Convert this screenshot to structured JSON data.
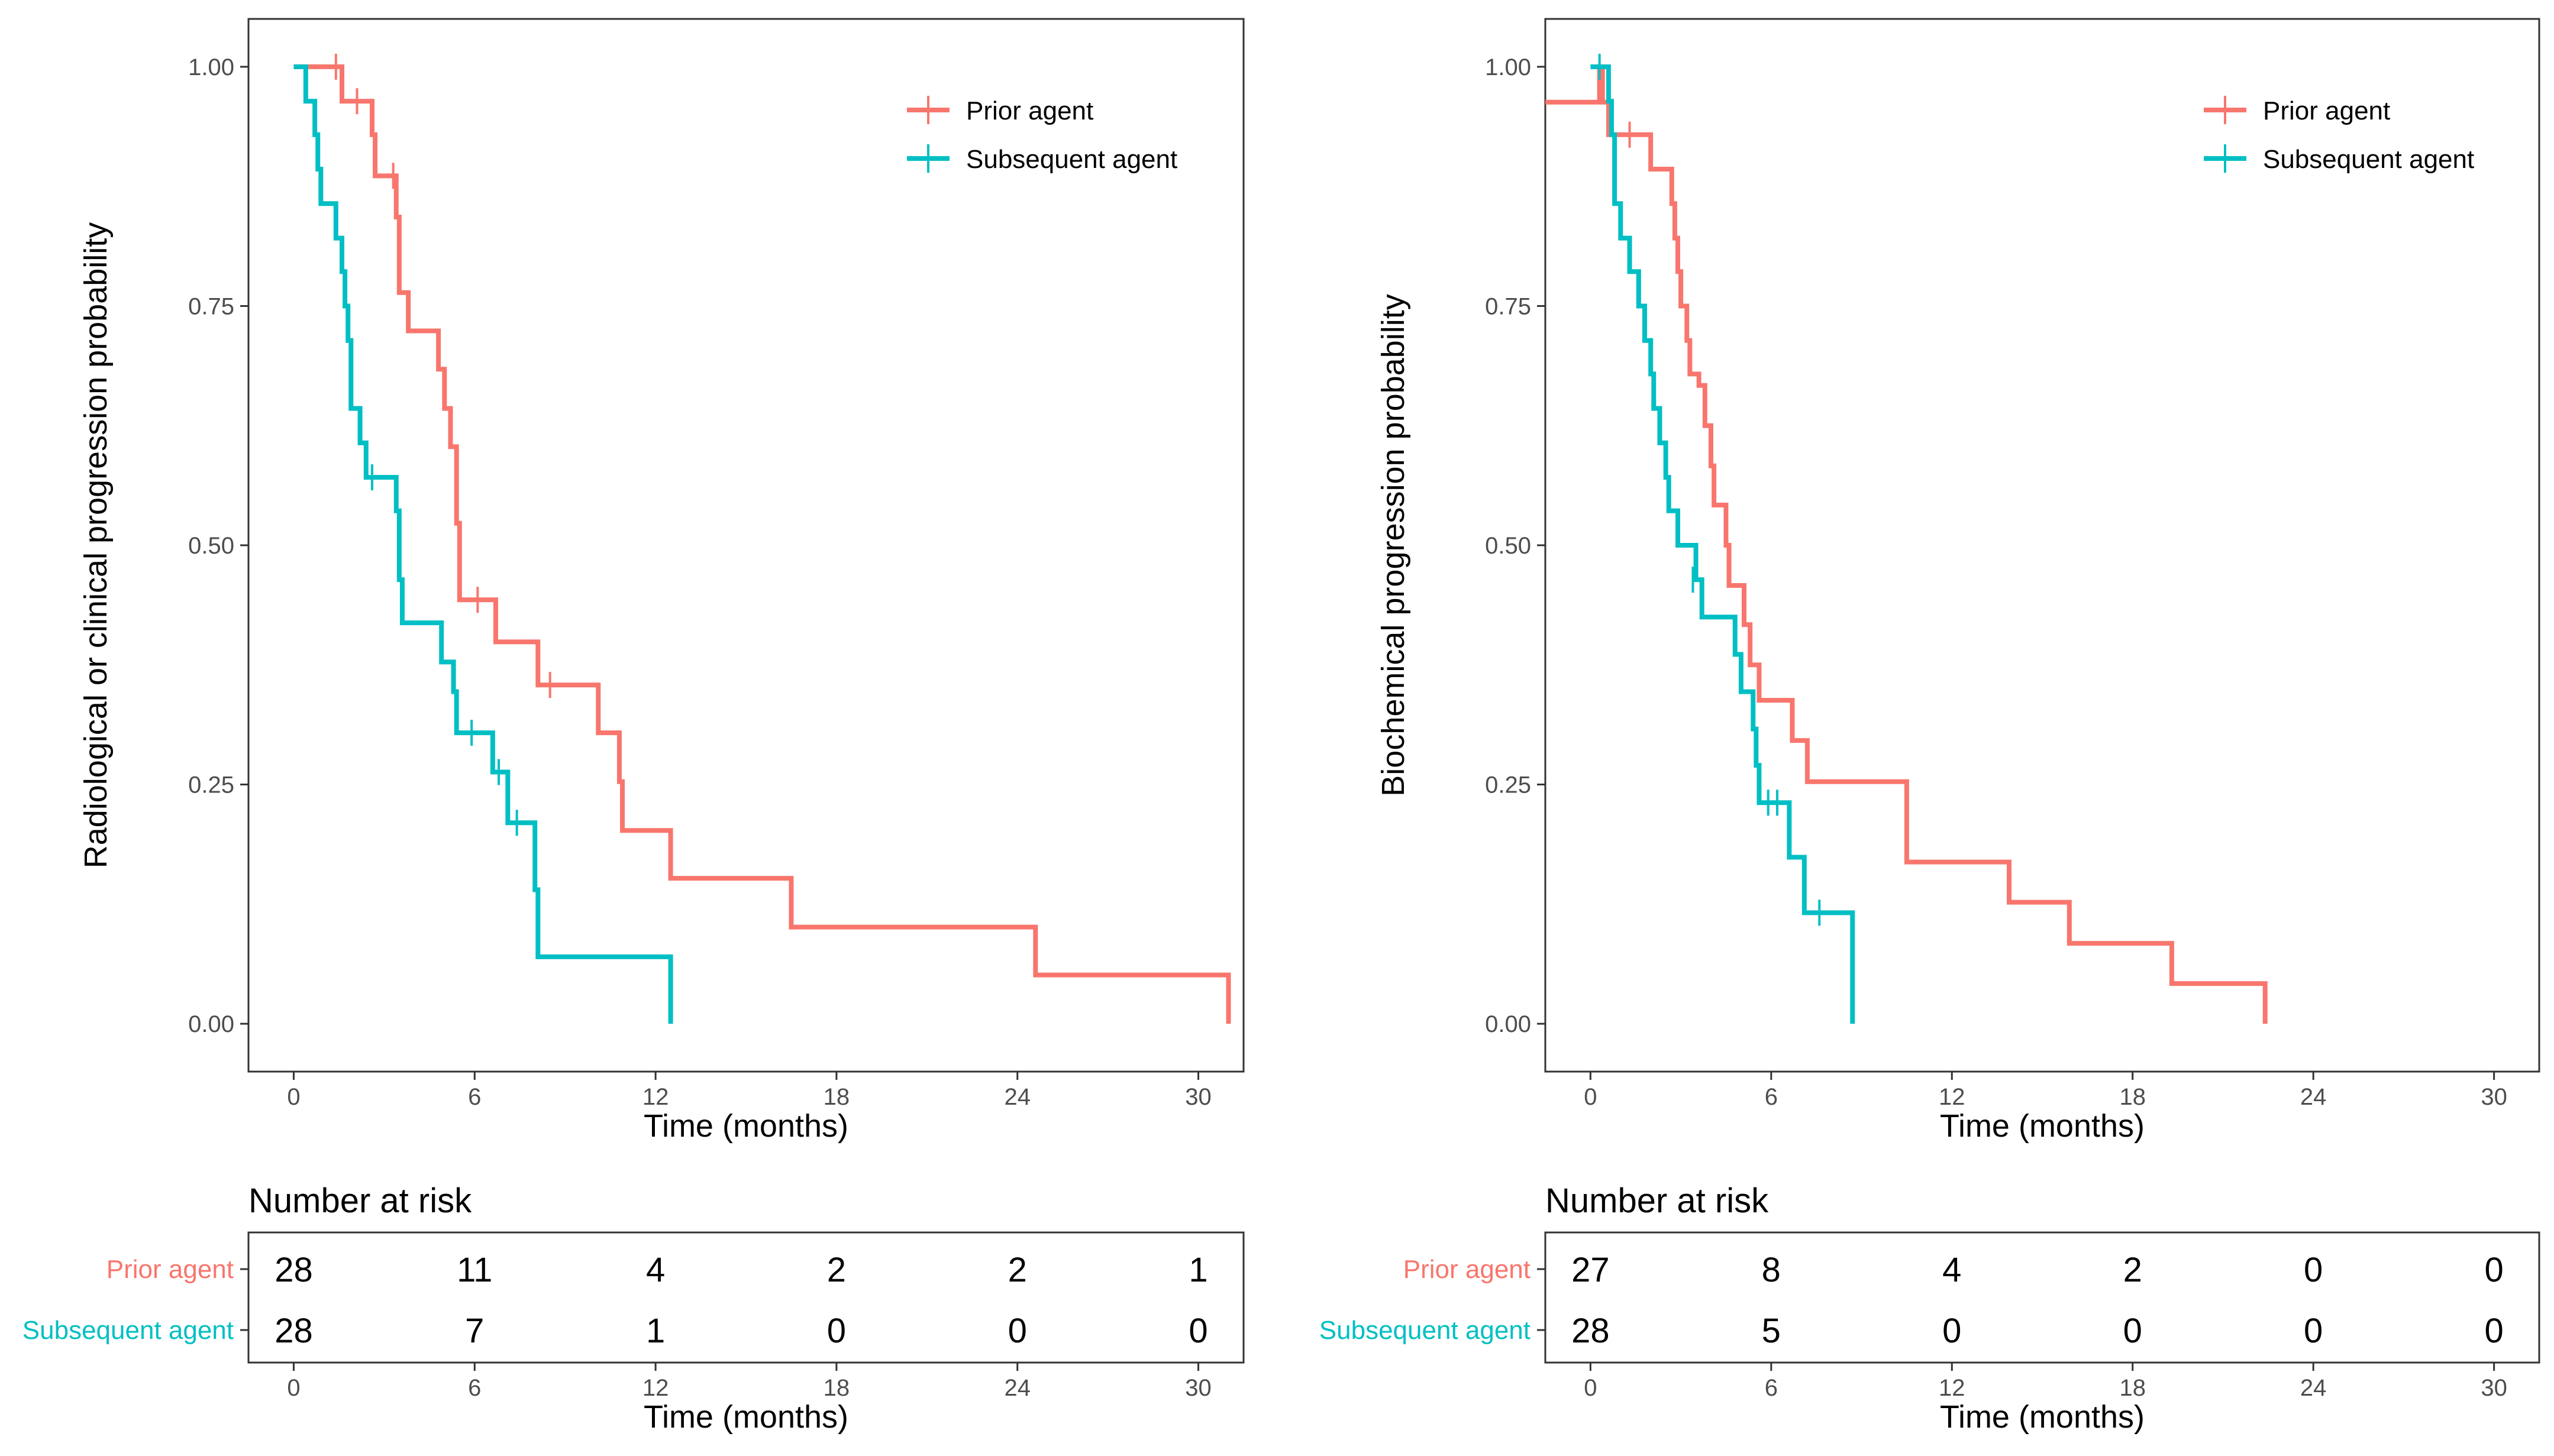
{
  "colors": {
    "prior": "#F8766D",
    "subsequent": "#00BFC4",
    "axis": "#333333",
    "tick_text": "#4d4d4d"
  },
  "chart_data": [
    {
      "type": "line",
      "subtype": "kaplan-meier step curve",
      "ylabel": "Radiological or clinical progression probability",
      "xlabel": "Time (months)",
      "xticks": [
        0,
        6,
        12,
        18,
        24,
        30
      ],
      "yticks": [
        "0.00",
        "0.25",
        "0.50",
        "0.75",
        "1.00"
      ],
      "xlim": [
        -1.5,
        31.5
      ],
      "ylim": [
        -0.05,
        1.05
      ],
      "legend": {
        "position": "top-right",
        "entries": [
          "Prior agent",
          "Subsequent agent"
        ]
      },
      "series": [
        {
          "name": "Prior agent",
          "color": "#F8766D",
          "steps": [
            [
              0,
              1.0
            ],
            [
              1.6,
              0.964
            ],
            [
              2.6,
              0.929
            ],
            [
              2.7,
              0.886
            ],
            [
              3.4,
              0.843
            ],
            [
              3.5,
              0.764
            ],
            [
              3.8,
              0.724
            ],
            [
              4.8,
              0.684
            ],
            [
              5.0,
              0.643
            ],
            [
              5.2,
              0.603
            ],
            [
              5.4,
              0.523
            ],
            [
              5.5,
              0.443
            ],
            [
              6.7,
              0.399
            ],
            [
              8.1,
              0.354
            ],
            [
              10.1,
              0.304
            ],
            [
              10.8,
              0.253
            ],
            [
              10.9,
              0.202
            ],
            [
              12.5,
              0.152
            ],
            [
              16.5,
              0.101
            ],
            [
              24.6,
              0.051
            ],
            [
              31.0,
              0.0
            ]
          ],
          "end": 31.0,
          "censors": [
            [
              1.4,
              1.0
            ],
            [
              2.1,
              0.964
            ],
            [
              3.3,
              0.886
            ],
            [
              6.1,
              0.443
            ],
            [
              8.5,
              0.354
            ]
          ]
        },
        {
          "name": "Subsequent agent",
          "color": "#00BFC4",
          "steps": [
            [
              0,
              1.0
            ],
            [
              0.4,
              0.964
            ],
            [
              0.7,
              0.929
            ],
            [
              0.8,
              0.893
            ],
            [
              0.9,
              0.857
            ],
            [
              1.4,
              0.821
            ],
            [
              1.6,
              0.786
            ],
            [
              1.7,
              0.75
            ],
            [
              1.8,
              0.714
            ],
            [
              1.9,
              0.643
            ],
            [
              2.2,
              0.607
            ],
            [
              2.4,
              0.571
            ],
            [
              3.4,
              0.536
            ],
            [
              3.5,
              0.464
            ],
            [
              3.6,
              0.419
            ],
            [
              4.9,
              0.378
            ],
            [
              5.3,
              0.347
            ],
            [
              5.4,
              0.304
            ],
            [
              6.6,
              0.263
            ],
            [
              7.1,
              0.21
            ],
            [
              8.0,
              0.14
            ],
            [
              8.1,
              0.07
            ],
            [
              12.5,
              0.0
            ]
          ],
          "end": 12.5,
          "censors": [
            [
              2.6,
              0.571
            ],
            [
              5.9,
              0.304
            ],
            [
              6.8,
              0.263
            ],
            [
              7.4,
              0.21
            ]
          ]
        }
      ],
      "risk_table": {
        "title": "Number at risk",
        "xlabel": "Time (months)",
        "times": [
          0,
          6,
          12,
          18,
          24,
          30
        ],
        "rows": [
          {
            "label": "Prior agent",
            "values": [
              "28",
              "11",
              "4",
              "2",
              "2",
              "1"
            ]
          },
          {
            "label": "Subsequent agent",
            "values": [
              "28",
              "7",
              "1",
              "0",
              "0",
              "0"
            ]
          }
        ]
      }
    },
    {
      "type": "line",
      "subtype": "kaplan-meier step curve",
      "ylabel": "Biochemical progression probability",
      "xlabel": "Time (months)",
      "xticks": [
        0,
        6,
        12,
        18,
        24,
        30
      ],
      "yticks": [
        "0.00",
        "0.25",
        "0.50",
        "0.75",
        "1.00"
      ],
      "xlim": [
        -1.5,
        31.5
      ],
      "ylim": [
        -0.05,
        1.05
      ],
      "legend": {
        "position": "top-right",
        "entries": [
          "Prior agent",
          "Subsequent agent"
        ]
      },
      "series": [
        {
          "name": "Prior agent",
          "color": "#F8766D",
          "steps": [
            [
              -1.5,
              0.963
            ],
            [
              0.3,
              1.0
            ],
            [
              0.4,
              0.963
            ],
            [
              0.6,
              0.929
            ],
            [
              2.0,
              0.893
            ],
            [
              2.7,
              0.857
            ],
            [
              2.8,
              0.821
            ],
            [
              2.9,
              0.786
            ],
            [
              3.0,
              0.75
            ],
            [
              3.2,
              0.714
            ],
            [
              3.3,
              0.679
            ],
            [
              3.6,
              0.667
            ],
            [
              3.8,
              0.625
            ],
            [
              4.0,
              0.583
            ],
            [
              4.1,
              0.542
            ],
            [
              4.5,
              0.5
            ],
            [
              4.6,
              0.458
            ],
            [
              5.1,
              0.417
            ],
            [
              5.3,
              0.375
            ],
            [
              5.6,
              0.338
            ],
            [
              6.7,
              0.296
            ],
            [
              7.2,
              0.253
            ],
            [
              10.5,
              0.169
            ],
            [
              13.9,
              0.127
            ],
            [
              15.9,
              0.084
            ],
            [
              19.3,
              0.042
            ],
            [
              22.4,
              0.0
            ]
          ],
          "end": 22.4,
          "censors": [
            [
              1.3,
              0.929
            ]
          ]
        },
        {
          "name": "Subsequent agent",
          "color": "#00BFC4",
          "steps": [
            [
              0,
              1.0
            ],
            [
              0.6,
              0.964
            ],
            [
              0.7,
              0.929
            ],
            [
              0.8,
              0.857
            ],
            [
              1.0,
              0.821
            ],
            [
              1.3,
              0.786
            ],
            [
              1.6,
              0.75
            ],
            [
              1.8,
              0.714
            ],
            [
              2.0,
              0.679
            ],
            [
              2.1,
              0.643
            ],
            [
              2.3,
              0.607
            ],
            [
              2.5,
              0.571
            ],
            [
              2.6,
              0.536
            ],
            [
              2.9,
              0.5
            ],
            [
              3.5,
              0.464
            ],
            [
              3.7,
              0.425
            ],
            [
              4.8,
              0.386
            ],
            [
              5.0,
              0.347
            ],
            [
              5.4,
              0.308
            ],
            [
              5.5,
              0.27
            ],
            [
              5.6,
              0.231
            ],
            [
              6.6,
              0.174
            ],
            [
              7.1,
              0.116
            ],
            [
              8.7,
              0.0
            ]
          ],
          "end": 8.7,
          "censors": [
            [
              0.3,
              1.0
            ],
            [
              3.4,
              0.464
            ],
            [
              5.9,
              0.231
            ],
            [
              6.2,
              0.231
            ],
            [
              7.6,
              0.116
            ]
          ]
        }
      ],
      "risk_table": {
        "title": "Number at risk",
        "xlabel": "Time (months)",
        "times": [
          0,
          6,
          12,
          18,
          24,
          30
        ],
        "rows": [
          {
            "label": "Prior agent",
            "values": [
              "27",
              "8",
              "4",
              "2",
              "0",
              "0"
            ]
          },
          {
            "label": "Subsequent agent",
            "values": [
              "28",
              "5",
              "0",
              "0",
              "0",
              "0"
            ]
          }
        ]
      }
    }
  ]
}
